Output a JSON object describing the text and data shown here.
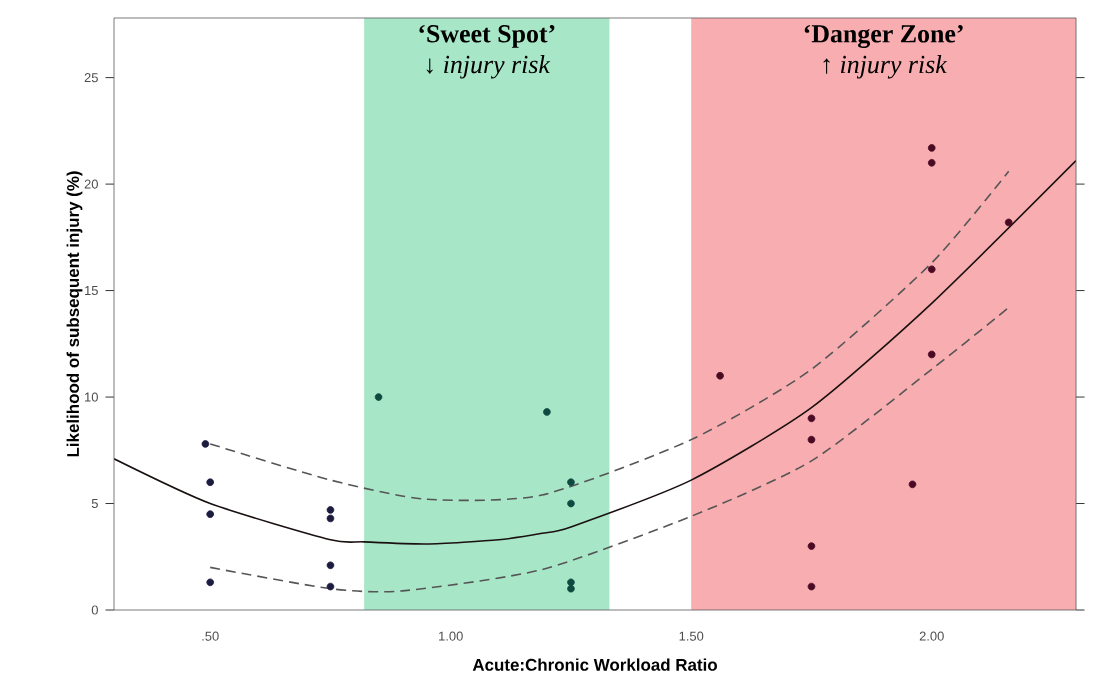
{
  "chart_data": {
    "type": "scatter",
    "xlabel": "Acute:Chronic Workload Ratio",
    "ylabel": "Likelihood of subsequent injury (%)",
    "xlim": [
      0.3,
      2.3
    ],
    "ylim": [
      0,
      27.8
    ],
    "xticks": [
      {
        "value": 0.5,
        "label": ".50"
      },
      {
        "value": 1.0,
        "label": "1.00"
      },
      {
        "value": 1.5,
        "label": "1.50"
      },
      {
        "value": 2.0,
        "label": "2.00"
      }
    ],
    "yticks": [
      0,
      5,
      10,
      15,
      20,
      25
    ],
    "bands": [
      {
        "axis": "x",
        "from": 0.82,
        "to": 1.33,
        "label": "‘Sweet Spot’",
        "color": "#a8e6c8"
      },
      {
        "axis": "x",
        "from": 1.5,
        "to": 2.3,
        "label": "‘Danger Zone’",
        "color": "#f8adb0"
      }
    ],
    "annotations": [
      "↓ *injury risk*",
      "↑ *injury risk*"
    ],
    "series": [
      {
        "marker": "circle",
        "color": "#1c1c40",
        "x": [
          0.49,
          0.5,
          0.5,
          0.5,
          0.75,
          0.75,
          0.75,
          0.75
        ],
        "values": [
          7.8,
          6.0,
          4.5,
          1.3,
          4.7,
          4.3,
          2.1,
          1.1
        ]
      },
      {
        "marker": "circle",
        "color": "#0e4a40",
        "x": [
          0.85,
          1.2,
          1.25,
          1.25,
          1.25,
          1.25
        ],
        "values": [
          10.0,
          9.3,
          6.0,
          5.0,
          1.3,
          1.0
        ]
      },
      {
        "marker": "circle",
        "color": "#4a0a24",
        "x": [
          1.56,
          1.75,
          1.75,
          1.75,
          1.75,
          1.96,
          2.0,
          2.0,
          2.0,
          2.0,
          2.16
        ],
        "values": [
          11.0,
          9.0,
          8.0,
          3.0,
          1.1,
          5.9,
          21.7,
          21.0,
          16.0,
          12.0,
          18.2
        ]
      },
      {
        "type": "line",
        "marker": "none",
        "line_style": "solid",
        "color": "#1a1010",
        "x": [
          0.3,
          0.5,
          0.75,
          0.82,
          0.95,
          1.1,
          1.19,
          1.25,
          1.5,
          1.75,
          2.0,
          2.3
        ],
        "values": [
          7.1,
          5.0,
          3.3,
          3.2,
          3.1,
          3.3,
          3.6,
          3.9,
          6.1,
          9.5,
          14.4,
          21.1
        ]
      },
      {
        "type": "line",
        "marker": "none",
        "line_style": "dashed",
        "color": "#555555",
        "x": [
          0.5,
          0.75,
          0.95,
          1.19,
          1.5,
          1.75,
          2.0,
          2.16
        ],
        "values": [
          7.8,
          6.1,
          5.2,
          5.4,
          8.0,
          11.3,
          16.3,
          20.6
        ]
      },
      {
        "type": "line",
        "marker": "none",
        "line_style": "dashed",
        "color": "#555555",
        "x": [
          0.5,
          0.75,
          0.9,
          1.19,
          1.5,
          1.75,
          2.0,
          2.16
        ],
        "values": [
          2.0,
          1.0,
          0.9,
          1.9,
          4.4,
          7.0,
          11.3,
          14.2
        ]
      }
    ]
  }
}
